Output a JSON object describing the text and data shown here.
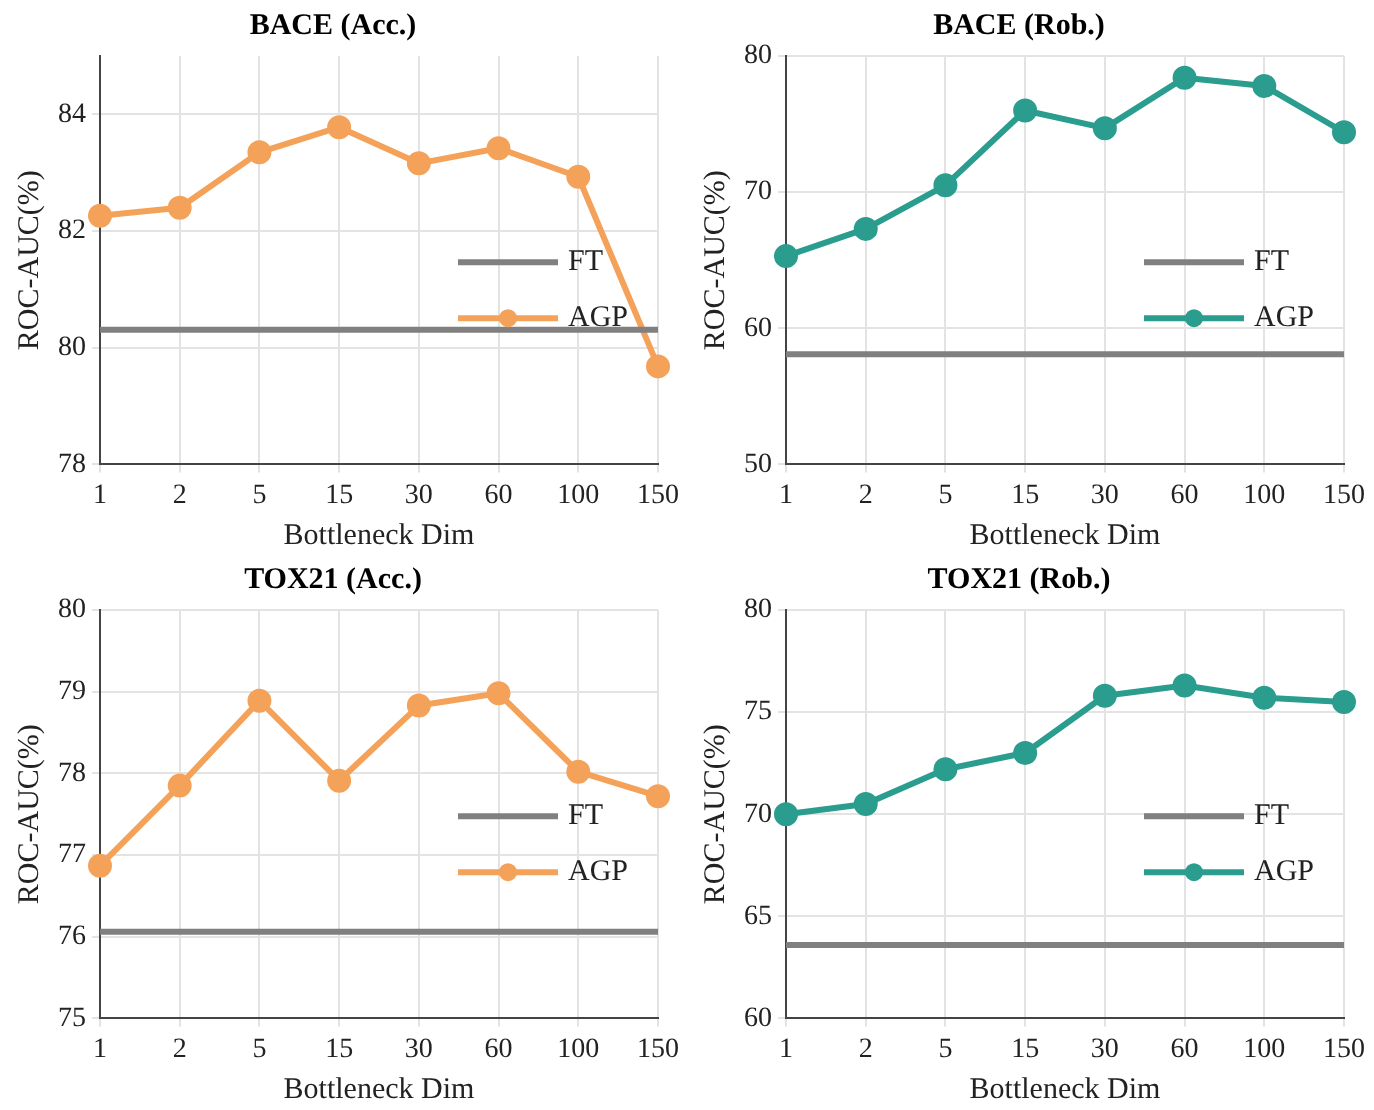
{
  "chart_data": [
    {
      "type": "line",
      "title": "BACE (Acc.)",
      "xlabel": "Bottleneck Dim",
      "ylabel": "ROC-AUC(%)",
      "categories": [
        "1",
        "2",
        "5",
        "15",
        "30",
        "60",
        "100",
        "150"
      ],
      "ylim": [
        78,
        85
      ],
      "yticks": [
        78,
        80,
        82,
        84
      ],
      "grid": true,
      "legend": "right",
      "series": [
        {
          "name": "FT",
          "color": "#808080",
          "marker": "none",
          "values": [
            80.31,
            80.31,
            80.31,
            80.31,
            80.31,
            80.31,
            80.31,
            80.31
          ]
        },
        {
          "name": "AGP",
          "color": "#f4a259",
          "marker": "circle",
          "values": [
            82.26,
            82.4,
            83.35,
            83.78,
            83.16,
            83.42,
            82.93,
            79.68
          ]
        }
      ]
    },
    {
      "type": "line",
      "title": "BACE (Rob.)",
      "xlabel": "Bottleneck Dim",
      "ylabel": "ROC-AUC(%)",
      "categories": [
        "1",
        "2",
        "5",
        "15",
        "30",
        "60",
        "100",
        "150"
      ],
      "ylim": [
        50,
        80
      ],
      "yticks": [
        50,
        60,
        70,
        80
      ],
      "grid": true,
      "legend": "right",
      "series": [
        {
          "name": "FT",
          "color": "#808080",
          "marker": "none",
          "values": [
            58.1,
            58.1,
            58.1,
            58.1,
            58.1,
            58.1,
            58.1,
            58.1
          ]
        },
        {
          "name": "AGP",
          "color": "#2a9d8f",
          "marker": "circle",
          "values": [
            65.3,
            67.3,
            70.5,
            76.0,
            74.7,
            78.4,
            77.8,
            74.4
          ]
        }
      ]
    },
    {
      "type": "line",
      "title": "TOX21 (Acc.)",
      "xlabel": "Bottleneck Dim",
      "ylabel": "ROC-AUC(%)",
      "categories": [
        "1",
        "2",
        "5",
        "15",
        "30",
        "60",
        "100",
        "150"
      ],
      "ylim": [
        75,
        80
      ],
      "yticks": [
        75,
        76,
        77,
        78,
        79,
        80
      ],
      "grid": true,
      "legend": "right",
      "series": [
        {
          "name": "FT",
          "color": "#808080",
          "marker": "none",
          "values": [
            76.06,
            76.06,
            76.06,
            76.06,
            76.06,
            76.06,
            76.06,
            76.06
          ]
        },
        {
          "name": "AGP",
          "color": "#f4a259",
          "marker": "circle",
          "values": [
            76.87,
            77.85,
            78.89,
            77.91,
            78.83,
            78.98,
            78.02,
            77.72
          ]
        }
      ]
    },
    {
      "type": "line",
      "title": "TOX21 (Rob.)",
      "xlabel": "Bottleneck Dim",
      "ylabel": "ROC-AUC(%)",
      "categories": [
        "1",
        "2",
        "5",
        "15",
        "30",
        "60",
        "100",
        "150"
      ],
      "ylim": [
        60,
        80
      ],
      "yticks": [
        60,
        65,
        70,
        75,
        80
      ],
      "grid": true,
      "legend": "right",
      "series": [
        {
          "name": "FT",
          "color": "#808080",
          "marker": "none",
          "values": [
            63.6,
            63.6,
            63.6,
            63.6,
            63.6,
            63.6,
            63.6,
            63.6
          ]
        },
        {
          "name": "AGP",
          "color": "#2a9d8f",
          "marker": "circle",
          "values": [
            70.0,
            70.5,
            72.2,
            73.0,
            75.8,
            76.3,
            75.7,
            75.5
          ]
        }
      ]
    }
  ]
}
